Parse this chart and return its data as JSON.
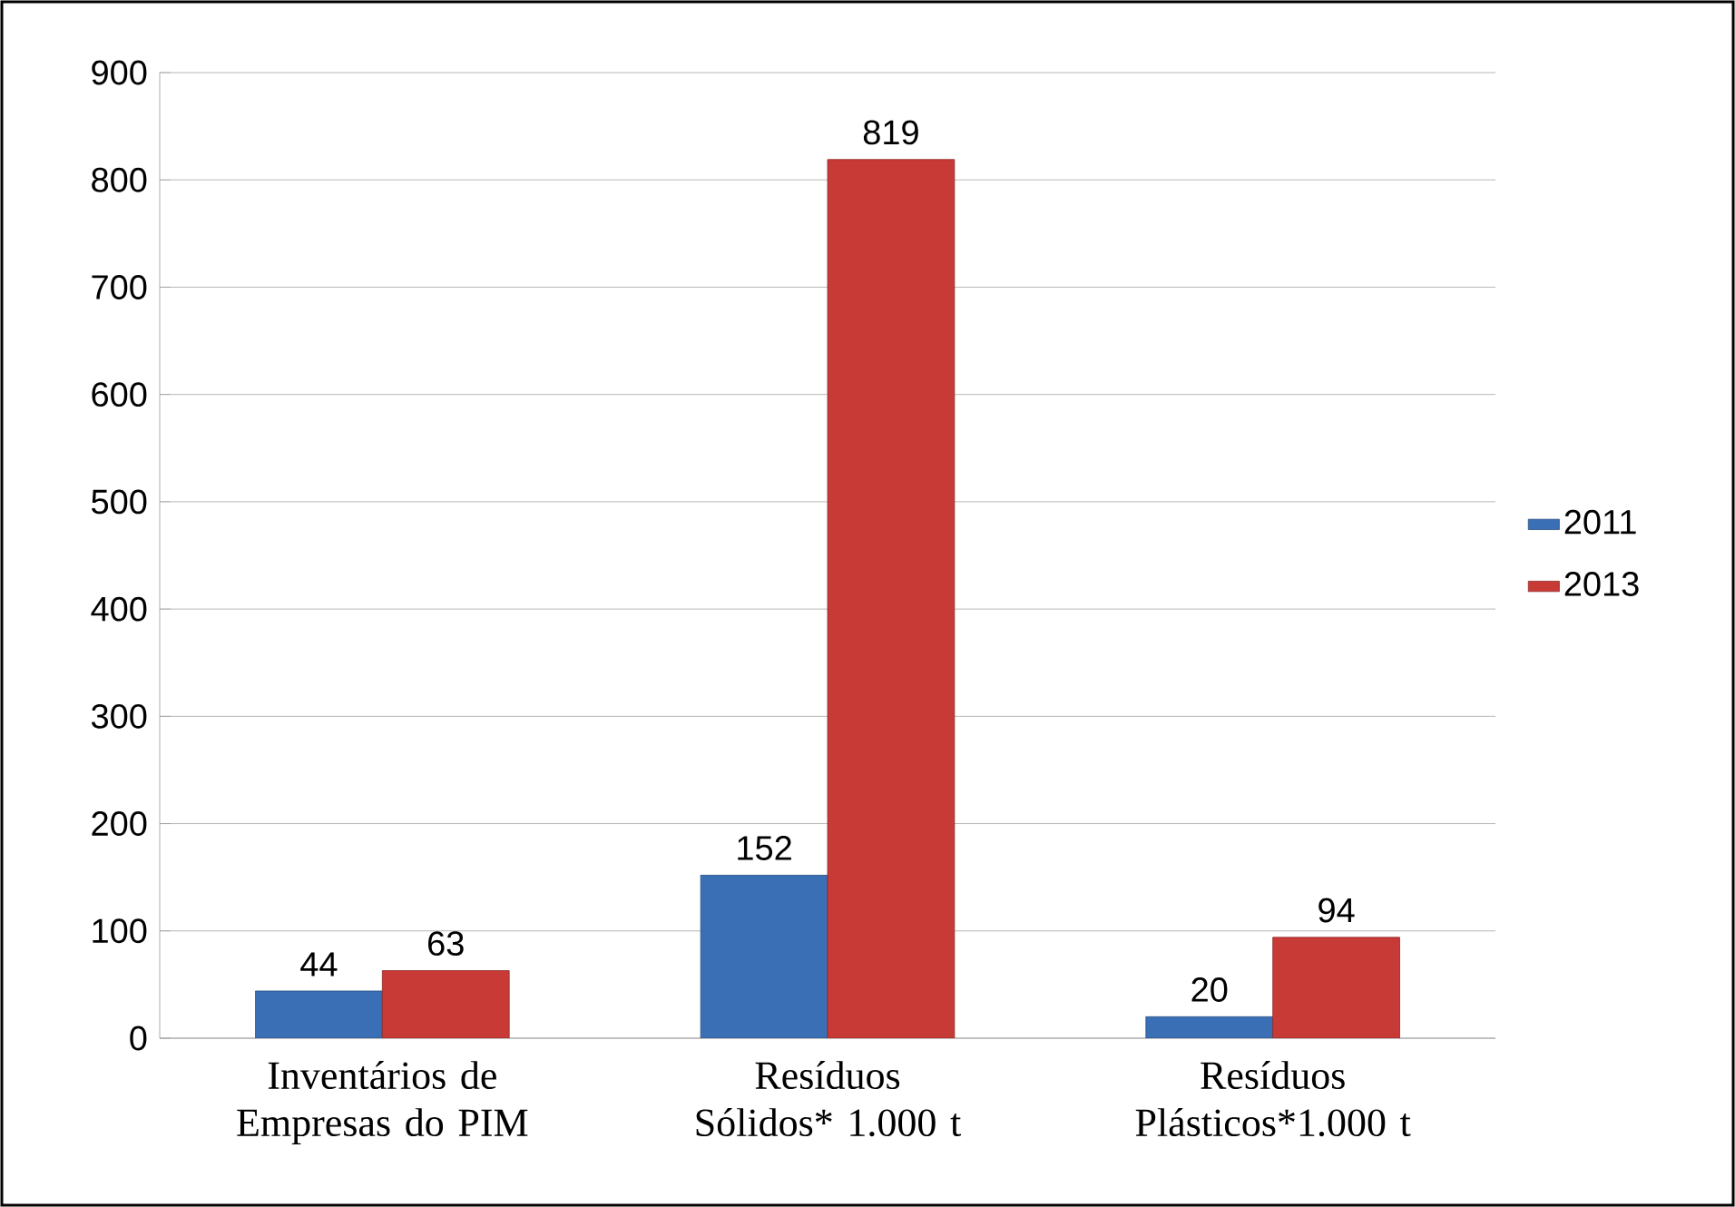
{
  "chart_data": {
    "type": "bar",
    "categories": [
      "Inventários  de Empresas do PIM",
      "Resíduos Sólidos* 1.000 t",
      "Resíduos Plásticos*1.000 t"
    ],
    "series": [
      {
        "name": "2011",
        "color": "#3a6fb5",
        "values": [
          44,
          152,
          20
        ]
      },
      {
        "name": "2013",
        "color": "#c83a36",
        "values": [
          63,
          819,
          94
        ]
      }
    ],
    "ylim": [
      0,
      900
    ],
    "yticks": [
      0,
      100,
      200,
      300,
      400,
      500,
      600,
      700,
      800,
      900
    ],
    "grid": "y",
    "legend": "right",
    "data_labels": true
  }
}
